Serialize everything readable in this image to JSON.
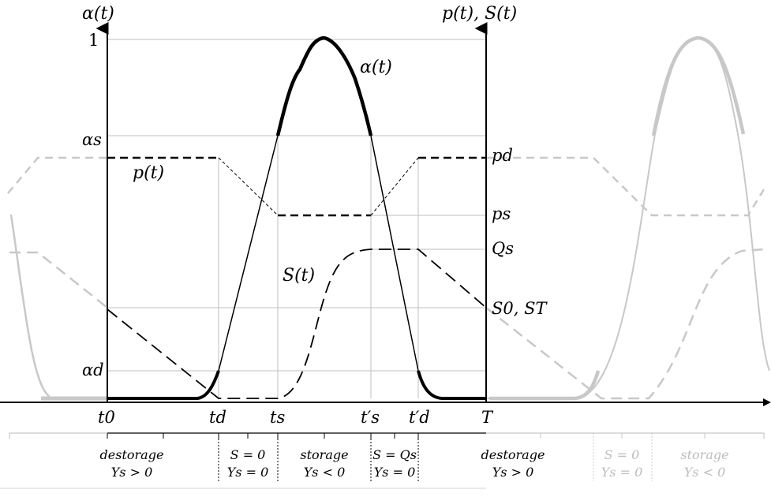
{
  "axes": {
    "left_label": "α(t)",
    "right_label": "p(t), S(t)",
    "left_ticks": [
      "1",
      "αs",
      "αd"
    ],
    "right_ticks": [
      "pd",
      "ps",
      "Qs",
      "S0, ST"
    ]
  },
  "curve_labels": {
    "alpha": "α(t)",
    "price": "p(t)",
    "storage": "S(t)"
  },
  "x_ticks": [
    "t0",
    "td",
    "ts",
    "t′s",
    "t′d",
    "T"
  ],
  "phases": [
    {
      "line1": "destorage",
      "line2": "Ys > 0"
    },
    {
      "line1": "S = 0",
      "line2": "Ys = 0"
    },
    {
      "line1": "storage",
      "line2": "Ys < 0"
    },
    {
      "line1": "S = Qs",
      "line2": "Ys = 0"
    },
    {
      "line1": "destorage",
      "line2": "Ys > 0"
    },
    {
      "line1": "S = 0",
      "line2": "Ys = 0"
    },
    {
      "line1": "storage",
      "line2": "Ys < 0"
    }
  ]
}
